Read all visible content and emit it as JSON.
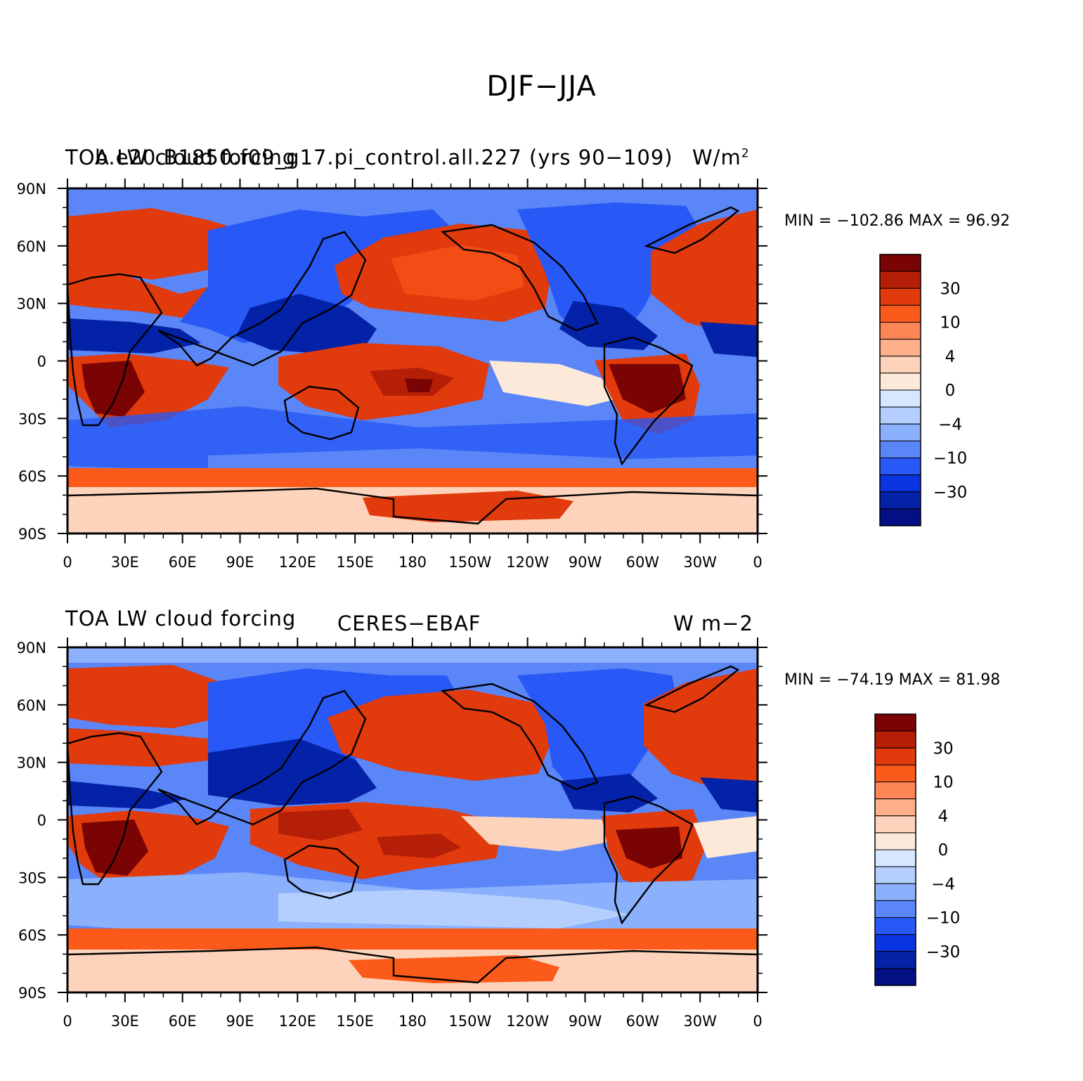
{
  "figure": {
    "title": "DJF−JJA",
    "x_ticks": [
      "0",
      "30E",
      "60E",
      "90E",
      "120E",
      "150E",
      "180",
      "150W",
      "120W",
      "90W",
      "60W",
      "30W",
      "0"
    ],
    "y_ticks": [
      "90N",
      "60N",
      "30N",
      "0",
      "30S",
      "60S",
      "90S"
    ],
    "colorbar_labels": [
      "30",
      "10",
      "4",
      "0",
      "−4",
      "−10",
      "−30"
    ],
    "colorbar_colors": [
      "#7a0403",
      "#b51f07",
      "#e03a0d",
      "#fb5a1a",
      "#fd8656",
      "#fdb089",
      "#fdd3bb",
      "#fde9d9",
      "#d6e8ff",
      "#b4cffe",
      "#8bb0fc",
      "#5b86f7",
      "#2858f5",
      "#0a34df",
      "#0422a8",
      "#030f82"
    ]
  },
  "panels": [
    {
      "left_header": "TOA LW cloud forcing",
      "case_header": "b.e20.B1850.f09_g17.pi_control.all.227 (yrs 90−109)",
      "units_header": "W/m",
      "units_sup": "2",
      "minmax": "MIN = −102.86  MAX =   96.92"
    },
    {
      "left_header": "TOA LW cloud forcing",
      "case_header": "CERES−EBAF",
      "units_header": "W m−2",
      "units_sup": "",
      "minmax": "MIN = −74.19  MAX =  81.98"
    }
  ]
}
